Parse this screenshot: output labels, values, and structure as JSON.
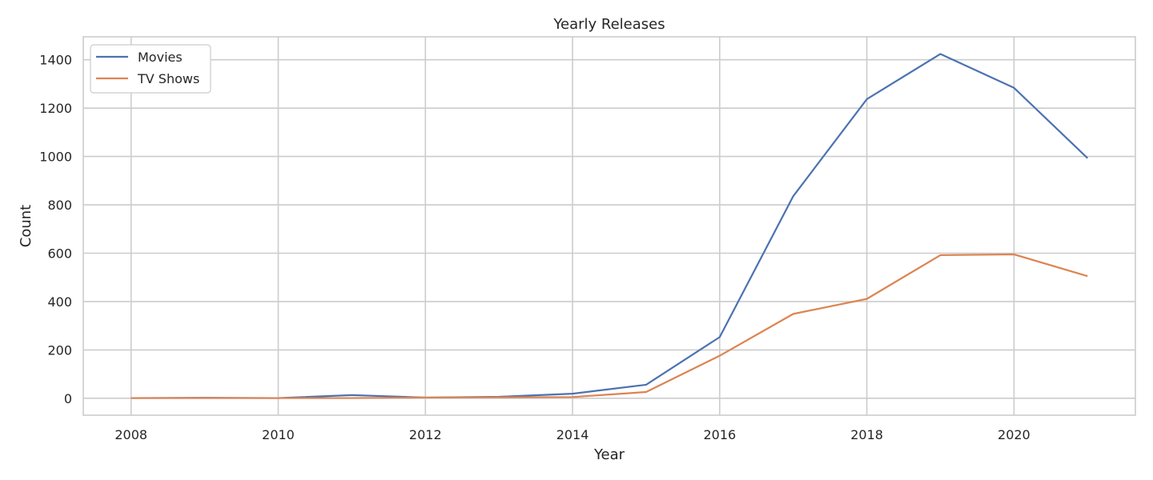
{
  "chart_data": {
    "type": "line",
    "title": "Yearly Releases",
    "xlabel": "Year",
    "ylabel": "Count",
    "x": [
      2008,
      2009,
      2010,
      2011,
      2012,
      2013,
      2014,
      2015,
      2016,
      2017,
      2018,
      2019,
      2020,
      2021
    ],
    "xlim": [
      2007.35,
      2021.65
    ],
    "ylim": [
      -70,
      1495
    ],
    "xticks": [
      2008,
      2010,
      2012,
      2014,
      2016,
      2018,
      2020
    ],
    "yticks": [
      0,
      200,
      400,
      600,
      800,
      1000,
      1200,
      1400
    ],
    "grid": true,
    "legend_position": "top-left",
    "series": [
      {
        "name": "Movies",
        "color": "#4c72b0",
        "values": [
          1,
          2,
          1,
          13,
          3,
          6,
          19,
          56,
          253,
          836,
          1237,
          1424,
          1284,
          993
        ]
      },
      {
        "name": "TV Shows",
        "color": "#dd8452",
        "values": [
          1,
          1,
          1,
          1,
          3,
          4,
          5,
          26,
          176,
          349,
          411,
          592,
          595,
          505
        ]
      }
    ]
  }
}
